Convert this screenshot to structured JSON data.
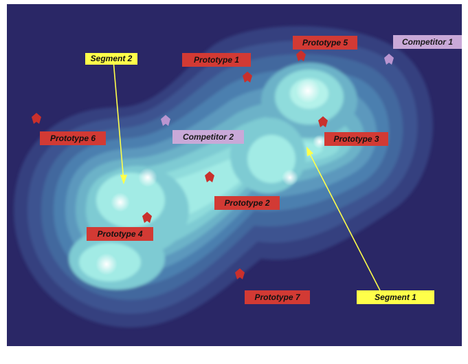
{
  "prototypes": [
    {
      "label": "Prototype 1"
    },
    {
      "label": "Prototype 2"
    },
    {
      "label": "Prototype 3"
    },
    {
      "label": "Prototype 4"
    },
    {
      "label": "Prototype 5"
    },
    {
      "label": "Prototype 6"
    },
    {
      "label": "Prototype 7"
    }
  ],
  "competitors": [
    {
      "label": "Competitor 1"
    },
    {
      "label": "Competitor 2"
    }
  ],
  "segments": [
    {
      "label": "Segment 1"
    },
    {
      "label": "Segment 2"
    }
  ],
  "colors": {
    "background": "#2a2766",
    "prototype": "#d23a34",
    "competitor": "#c9a9d8",
    "segment": "#ffff4a",
    "contour_outer": "#3b4b8e",
    "contour_inner": "#9ff0ec"
  }
}
